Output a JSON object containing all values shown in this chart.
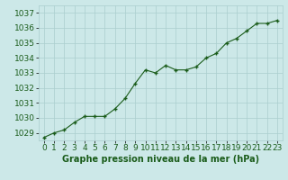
{
  "x": [
    0,
    1,
    2,
    3,
    4,
    5,
    6,
    7,
    8,
    9,
    10,
    11,
    12,
    13,
    14,
    15,
    16,
    17,
    18,
    19,
    20,
    21,
    22,
    23
  ],
  "y": [
    1028.7,
    1029.0,
    1029.2,
    1029.7,
    1030.1,
    1030.1,
    1030.1,
    1030.6,
    1031.3,
    1032.3,
    1033.2,
    1033.0,
    1033.5,
    1033.2,
    1033.2,
    1033.4,
    1034.0,
    1034.3,
    1035.0,
    1035.3,
    1035.8,
    1036.3,
    1036.3,
    1036.5
  ],
  "ylim": [
    1028.5,
    1037.5
  ],
  "yticks": [
    1029,
    1030,
    1031,
    1032,
    1033,
    1034,
    1035,
    1036,
    1037
  ],
  "xticks": [
    0,
    1,
    2,
    3,
    4,
    5,
    6,
    7,
    8,
    9,
    10,
    11,
    12,
    13,
    14,
    15,
    16,
    17,
    18,
    19,
    20,
    21,
    22,
    23
  ],
  "xlabel": "Graphe pression niveau de la mer (hPa)",
  "line_color": "#1a5c1a",
  "marker": "+",
  "marker_color": "#1a5c1a",
  "bg_color": "#cce8e8",
  "grid_color": "#aacece",
  "tick_label_color": "#1a5c1a",
  "xlabel_color": "#1a5c1a",
  "xlabel_fontsize": 7,
  "tick_fontsize": 6.5
}
